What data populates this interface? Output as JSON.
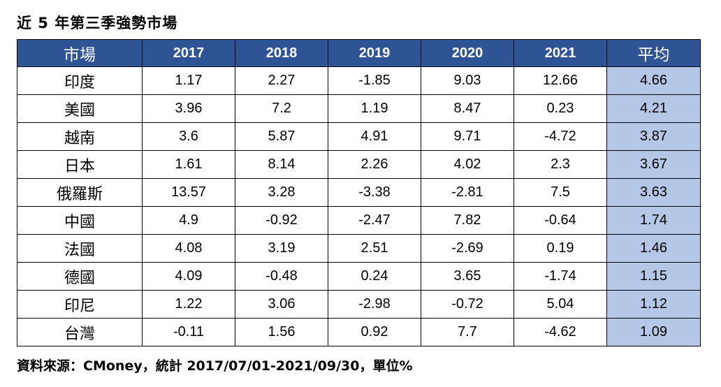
{
  "title": "近 5 年第三季強勢市場",
  "table": {
    "headers": [
      "市場",
      "2017",
      "2018",
      "2019",
      "2020",
      "2021",
      "平均"
    ],
    "rows": [
      [
        "印度",
        "1.17",
        "2.27",
        "-1.85",
        "9.03",
        "12.66",
        "4.66"
      ],
      [
        "美國",
        "3.96",
        "7.2",
        "1.19",
        "8.47",
        "0.23",
        "4.21"
      ],
      [
        "越南",
        "3.6",
        "5.87",
        "4.91",
        "9.71",
        "-4.72",
        "3.87"
      ],
      [
        "日本",
        "1.61",
        "8.14",
        "2.26",
        "4.02",
        "2.3",
        "3.67"
      ],
      [
        "俄羅斯",
        "13.57",
        "3.28",
        "-3.38",
        "-2.81",
        "7.5",
        "3.63"
      ],
      [
        "中國",
        "4.9",
        "-0.92",
        "-2.47",
        "7.82",
        "-0.64",
        "1.74"
      ],
      [
        "法國",
        "4.08",
        "3.19",
        "2.51",
        "-2.69",
        "0.19",
        "1.46"
      ],
      [
        "德國",
        "4.09",
        "-0.48",
        "0.24",
        "3.65",
        "-1.74",
        "1.15"
      ],
      [
        "印尼",
        "1.22",
        "3.06",
        "-2.98",
        "-0.72",
        "5.04",
        "1.12"
      ],
      [
        "台灣",
        "-0.11",
        "1.56",
        "0.92",
        "7.7",
        "-4.62",
        "1.09"
      ]
    ]
  },
  "footer": "資料來源：CMoney，統計 2017/07/01-2021/09/30，單位%",
  "colors": {
    "header_bg": "#2f5496",
    "header_text": "#ffffff",
    "average_bg": "#b4c7e7"
  }
}
